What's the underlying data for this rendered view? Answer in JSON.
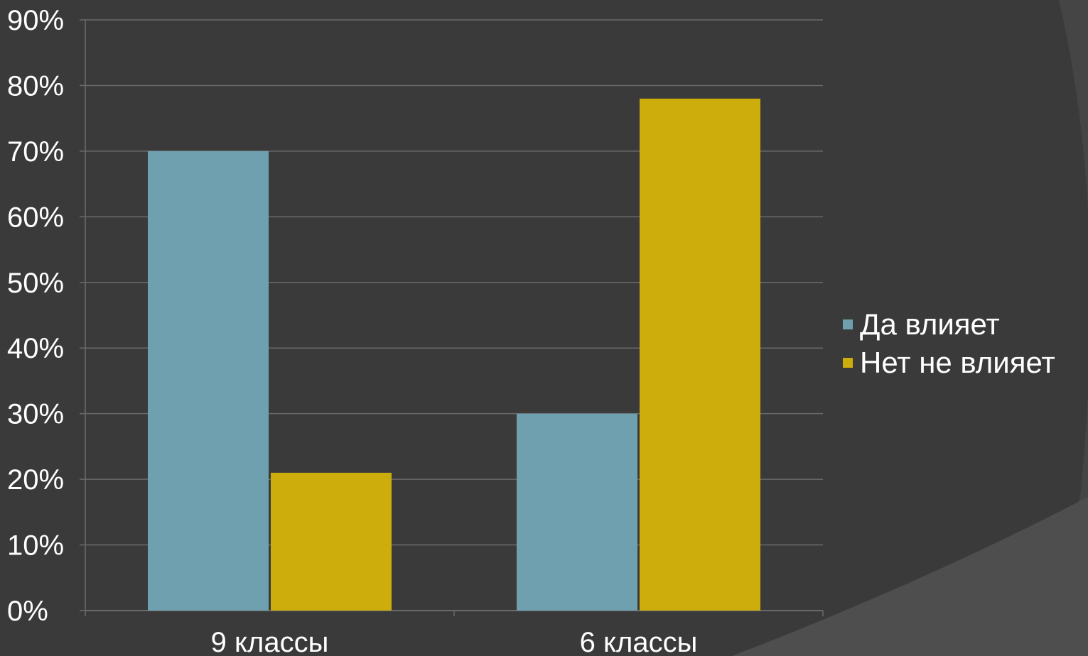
{
  "chart_data": {
    "type": "bar",
    "categories": [
      "9 классы",
      "6 классы"
    ],
    "series": [
      {
        "name": "Да влияет",
        "values": [
          70,
          30
        ],
        "color": "#6fa0b0"
      },
      {
        "name": "Нет не влияет",
        "values": [
          21,
          78
        ],
        "color": "#ccad0c"
      }
    ],
    "ylim": [
      0,
      90
    ],
    "yticks": [
      "0%",
      "10%",
      "20%",
      "30%",
      "40%",
      "50%",
      "60%",
      "70%",
      "80%",
      "90%"
    ],
    "grid": true,
    "legend_position": "right"
  },
  "colors": {
    "background": "#3a3a3a",
    "gridline": "#6a6a6a",
    "text": "#ffffff"
  }
}
